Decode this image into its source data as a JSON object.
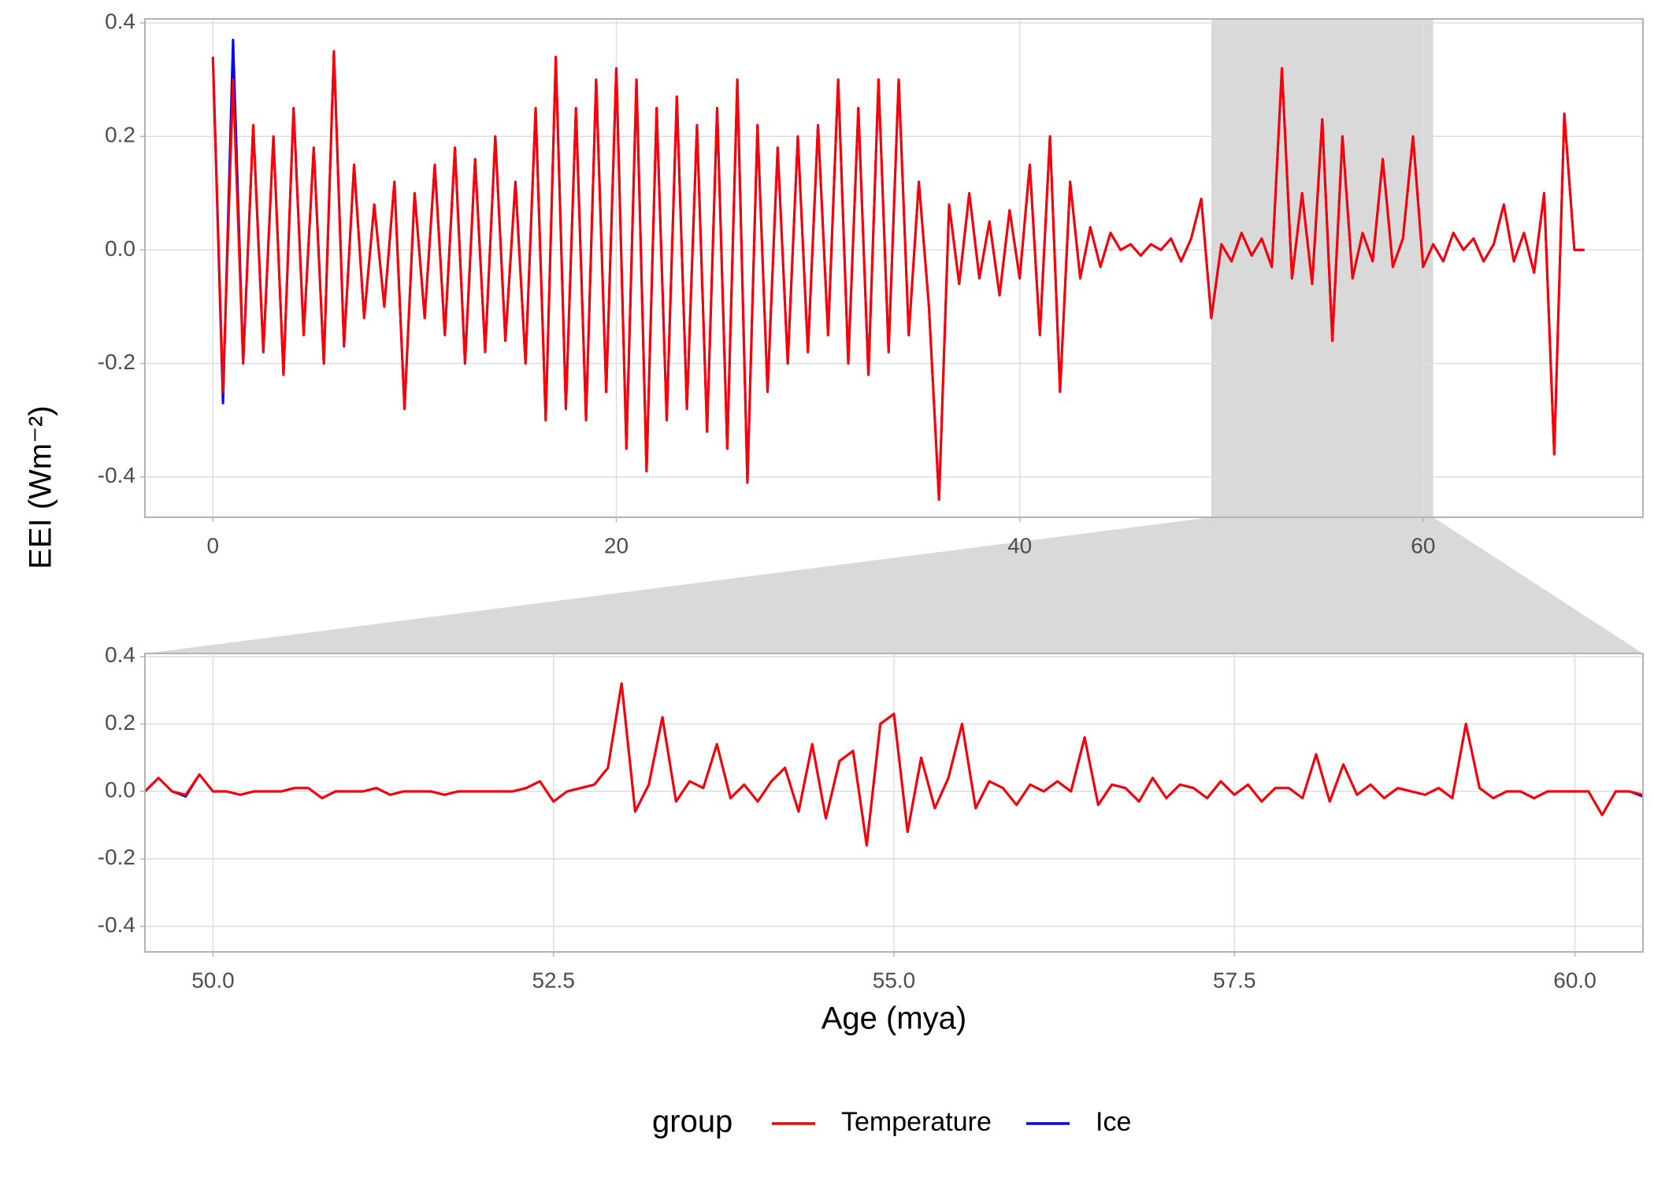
{
  "chart_data": [
    {
      "type": "line",
      "x": [
        0,
        0.5,
        1,
        1.5,
        2,
        2.5,
        3,
        3.5,
        4,
        4.5,
        5,
        5.5,
        6,
        6.5,
        7,
        7.5,
        8,
        8.5,
        9,
        9.5,
        10,
        10.5,
        11,
        11.5,
        12,
        12.5,
        13,
        13.5,
        14,
        14.5,
        15,
        15.5,
        16,
        16.5,
        17,
        17.5,
        18,
        18.5,
        19,
        19.5,
        20,
        20.5,
        21,
        21.5,
        22,
        22.5,
        23,
        23.5,
        24,
        24.5,
        25,
        25.5,
        26,
        26.5,
        27,
        27.5,
        28,
        28.5,
        29,
        29.5,
        30,
        30.5,
        31,
        31.5,
        32,
        32.5,
        33,
        33.5,
        34,
        34.5,
        35,
        35.5,
        36,
        36.5,
        37,
        37.5,
        38,
        38.5,
        39,
        39.5,
        40,
        40.5,
        41,
        41.5,
        42,
        42.5,
        43,
        43.5,
        44,
        44.5,
        45,
        45.5,
        46,
        46.5,
        47,
        47.5,
        48,
        48.5,
        49,
        49.5,
        50,
        50.5,
        51,
        51.5,
        52,
        52.5,
        53,
        53.5,
        54,
        54.5,
        55,
        55.5,
        56,
        56.5,
        57,
        57.5,
        58,
        58.5,
        59,
        59.5,
        60,
        60.5,
        61,
        61.5,
        62,
        62.5,
        63,
        63.5,
        64,
        64.5,
        65,
        65.5,
        66,
        66.5,
        67,
        67.5,
        68
      ],
      "series": [
        {
          "name": "Temperature",
          "color": "#ff0000",
          "values": [
            0.34,
            -0.25,
            0.3,
            -0.2,
            0.22,
            -0.18,
            0.2,
            -0.22,
            0.25,
            -0.15,
            0.18,
            -0.2,
            0.35,
            -0.17,
            0.15,
            -0.12,
            0.08,
            -0.1,
            0.12,
            -0.28,
            0.1,
            -0.12,
            0.15,
            -0.15,
            0.18,
            -0.2,
            0.16,
            -0.18,
            0.2,
            -0.16,
            0.12,
            -0.2,
            0.25,
            -0.3,
            0.34,
            -0.28,
            0.25,
            -0.3,
            0.3,
            -0.25,
            0.32,
            -0.35,
            0.3,
            -0.39,
            0.25,
            -0.3,
            0.27,
            -0.28,
            0.22,
            -0.32,
            0.25,
            -0.35,
            0.3,
            -0.41,
            0.22,
            -0.25,
            0.18,
            -0.2,
            0.2,
            -0.18,
            0.22,
            -0.15,
            0.3,
            -0.2,
            0.25,
            -0.22,
            0.3,
            -0.18,
            0.3,
            -0.15,
            0.12,
            -0.1,
            -0.44,
            0.08,
            -0.06,
            0.1,
            -0.05,
            0.05,
            -0.08,
            0.07,
            -0.05,
            0.15,
            -0.15,
            0.2,
            -0.25,
            0.12,
            -0.05,
            0.04,
            -0.03,
            0.03,
            0,
            0.01,
            -0.01,
            0.01,
            0,
            0.02,
            -0.02,
            0.02,
            0.09,
            -0.12,
            0.01,
            -0.02,
            0.03,
            -0.01,
            0.02,
            -0.03,
            0.32,
            -0.05,
            0.1,
            -0.06,
            0.23,
            -0.16,
            0.2,
            -0.05,
            0.03,
            -0.02,
            0.16,
            -0.03,
            0.02,
            0.2,
            -0.03,
            0.01,
            -0.02,
            0.03,
            0,
            0.02,
            -0.02,
            0.01,
            0.08,
            -0.02,
            0.03,
            -0.04,
            0.1,
            -0.36,
            0.24,
            0,
            0
          ]
        },
        {
          "name": "Ice",
          "color": "#0000ff",
          "values": [
            0.34,
            -0.27,
            0.37,
            -0.2,
            0.22,
            -0.18,
            0.2,
            -0.22,
            0.25,
            -0.15,
            0.18,
            -0.2,
            0.35,
            -0.17,
            0.15,
            -0.12,
            0.08,
            -0.1,
            0.12,
            -0.28,
            0.1,
            -0.12,
            0.15,
            -0.15,
            0.18,
            -0.2,
            0.16,
            -0.18,
            0.2,
            -0.16,
            0.12,
            -0.2,
            0.25,
            -0.3,
            0.34,
            -0.28,
            0.25,
            -0.3,
            0.3,
            -0.25,
            0.32,
            -0.35,
            0.3,
            -0.39,
            0.25,
            -0.3,
            0.27,
            -0.28,
            0.22,
            -0.32,
            0.25,
            -0.35,
            0.3,
            -0.41,
            0.22,
            -0.25,
            0.18,
            -0.2,
            0.2,
            -0.18,
            0.22,
            -0.15,
            0.3,
            -0.2,
            0.25,
            -0.22,
            0.3,
            -0.18,
            0.3,
            -0.15,
            0.12,
            -0.1,
            -0.44,
            0.08,
            -0.06,
            0.1,
            -0.05,
            0.05,
            -0.08,
            0.07,
            -0.05,
            0.15,
            -0.15,
            0.2,
            -0.25,
            0.12,
            -0.05,
            0.04,
            -0.03,
            0.03,
            0,
            0.01,
            -0.01,
            0.01,
            0,
            0.02,
            -0.02,
            0.02,
            0.09,
            -0.12,
            0.01,
            -0.02,
            0.03,
            -0.01,
            0.02,
            -0.03,
            0.32,
            -0.05,
            0.1,
            -0.06,
            0.23,
            -0.16,
            0.2,
            -0.05,
            0.03,
            -0.02,
            0.16,
            -0.03,
            0.02,
            0.2,
            -0.03,
            0.01,
            -0.02,
            0.03,
            0,
            0.02,
            -0.02,
            0.01,
            0.08,
            -0.02,
            0.03,
            -0.04,
            0.1,
            -0.36,
            0.24,
            0,
            0
          ]
        }
      ],
      "xlim": [
        -3.37,
        70.9
      ],
      "xticks": [
        0,
        20,
        40,
        60
      ],
      "ylim": [
        -0.471,
        0.407
      ],
      "yticks": [
        -0.4,
        -0.2,
        {
          "value": 0,
          "label": "0.0"
        },
        0.2,
        0.4
      ],
      "grid": true
    },
    {
      "type": "line",
      "x": [
        49.5,
        49.6,
        49.7,
        49.8,
        49.9,
        50,
        50.1,
        50.2,
        50.3,
        50.4,
        50.5,
        50.6,
        50.7,
        50.8,
        50.9,
        51,
        51.1,
        51.2,
        51.3,
        51.4,
        51.5,
        51.6,
        51.7,
        51.8,
        51.9,
        52,
        52.1,
        52.2,
        52.3,
        52.4,
        52.5,
        52.6,
        52.7,
        52.8,
        52.9,
        53,
        53.1,
        53.2,
        53.3,
        53.4,
        53.5,
        53.6,
        53.7,
        53.8,
        53.9,
        54,
        54.1,
        54.2,
        54.3,
        54.4,
        54.5,
        54.6,
        54.7,
        54.8,
        54.9,
        55,
        55.1,
        55.2,
        55.3,
        55.4,
        55.5,
        55.6,
        55.7,
        55.8,
        55.9,
        56,
        56.1,
        56.2,
        56.3,
        56.4,
        56.5,
        56.6,
        56.7,
        56.8,
        56.9,
        57,
        57.1,
        57.2,
        57.3,
        57.4,
        57.5,
        57.6,
        57.7,
        57.8,
        57.9,
        58,
        58.1,
        58.2,
        58.3,
        58.4,
        58.5,
        58.6,
        58.7,
        58.8,
        58.9,
        59,
        59.1,
        59.2,
        59.3,
        59.4,
        59.5,
        59.6,
        59.7,
        59.8,
        59.9,
        60,
        60.1,
        60.2,
        60.3,
        60.4,
        60.5
      ],
      "series": [
        {
          "name": "Temperature",
          "color": "#ff0000",
          "values": [
            0,
            0.04,
            0,
            -0.01,
            0.05,
            0,
            0,
            -0.01,
            0,
            0,
            0,
            0.01,
            0.01,
            -0.02,
            0,
            0,
            0,
            0.01,
            -0.01,
            0,
            0,
            0,
            -0.01,
            0,
            0,
            0,
            0,
            0,
            0.01,
            0.03,
            -0.03,
            0,
            0.01,
            0.02,
            0.07,
            0.32,
            -0.06,
            0.02,
            0.22,
            -0.03,
            0.03,
            0.01,
            0.14,
            -0.02,
            0.02,
            -0.03,
            0.03,
            0.07,
            -0.06,
            0.14,
            -0.08,
            0.09,
            0.12,
            -0.16,
            0.2,
            0.23,
            -0.12,
            0.1,
            -0.05,
            0.04,
            0.2,
            -0.05,
            0.03,
            0.01,
            -0.04,
            0.02,
            0,
            0.03,
            0,
            0.16,
            -0.04,
            0.02,
            0.01,
            -0.03,
            0.04,
            -0.02,
            0.02,
            0.01,
            -0.02,
            0.03,
            -0.01,
            0.02,
            -0.03,
            0.01,
            0.01,
            -0.02,
            0.11,
            -0.03,
            0.08,
            -0.01,
            0.02,
            -0.02,
            0.01,
            0,
            -0.01,
            0.01,
            -0.02,
            0.2,
            0.01,
            -0.02,
            0,
            0,
            -0.02,
            0,
            0,
            0,
            0,
            -0.07,
            0,
            0,
            -0.01
          ]
        },
        {
          "name": "Ice",
          "color": "#0000ff",
          "values": [
            0,
            0.04,
            0,
            -0.015,
            0.05,
            0,
            0,
            -0.01,
            0,
            0,
            0,
            0.01,
            0.01,
            -0.02,
            0,
            0,
            0,
            0.01,
            -0.01,
            0,
            0,
            0,
            -0.01,
            0,
            0,
            0,
            0,
            0,
            0.01,
            0.03,
            -0.03,
            0,
            0.01,
            0.02,
            0.07,
            0.32,
            -0.06,
            0.02,
            0.22,
            -0.03,
            0.03,
            0.01,
            0.14,
            -0.02,
            0.02,
            -0.03,
            0.03,
            0.07,
            -0.06,
            0.14,
            -0.08,
            0.09,
            0.12,
            -0.16,
            0.2,
            0.23,
            -0.12,
            0.1,
            -0.05,
            0.04,
            0.2,
            -0.05,
            0.03,
            0.01,
            -0.04,
            0.02,
            0,
            0.03,
            0,
            0.16,
            -0.04,
            0.02,
            0.01,
            -0.03,
            0.04,
            -0.02,
            0.02,
            0.01,
            -0.02,
            0.03,
            -0.01,
            0.02,
            -0.03,
            0.01,
            0.01,
            -0.02,
            0.11,
            -0.03,
            0.08,
            -0.01,
            0.02,
            -0.02,
            0.01,
            0,
            -0.01,
            0.01,
            -0.02,
            0.2,
            0.01,
            -0.02,
            0,
            0,
            -0.02,
            0,
            0,
            0,
            0,
            -0.07,
            0,
            0,
            -0.015
          ]
        }
      ],
      "xlim": [
        49.5,
        60.5
      ],
      "xticks": [
        {
          "value": 50,
          "label": "50.0"
        },
        {
          "value": 52.5,
          "label": "52.5"
        },
        {
          "value": 55,
          "label": "55.0"
        },
        {
          "value": 57.5,
          "label": "57.5"
        },
        {
          "value": 60,
          "label": "60.0"
        }
      ],
      "ylim": [
        -0.476,
        0.409
      ],
      "yticks": [
        -0.4,
        -0.2,
        {
          "value": 0,
          "label": "0.0"
        },
        0.2,
        0.4
      ],
      "grid": true
    }
  ],
  "y_label": "EEI (Wm⁻²)",
  "x_label": "Age (mya)",
  "legend_title": "group"
}
